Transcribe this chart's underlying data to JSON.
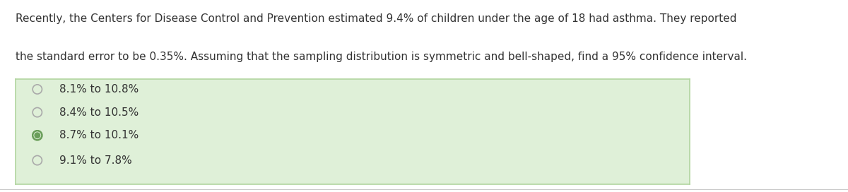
{
  "question_line1": "Recently, the Centers for Disease Control and Prevention estimated 9.4% of children under the age of 18 had asthma. They reported",
  "question_line2": "the standard error to be 0.35%. Assuming that the sampling distribution is symmetric and bell-shaped, find a 95% confidence interval.",
  "options": [
    {
      "text": "8.1% to 10.8%",
      "selected": false
    },
    {
      "text": "8.4% to 10.5%",
      "selected": false
    },
    {
      "text": "8.7% to 10.1%",
      "selected": true
    },
    {
      "text": "9.1% to 7.8%",
      "selected": false
    }
  ],
  "bg_color": "#ffffff",
  "box_bg_color": "#dff0d8",
  "box_edge_color": "#b2d5a0",
  "text_color": "#333333",
  "question_fontsize": 11.0,
  "option_fontsize": 11.0,
  "selected_dot_color": "#6a9e5a",
  "unselected_circle_edge": "#aaaaaa",
  "bottom_line_color": "#cccccc"
}
